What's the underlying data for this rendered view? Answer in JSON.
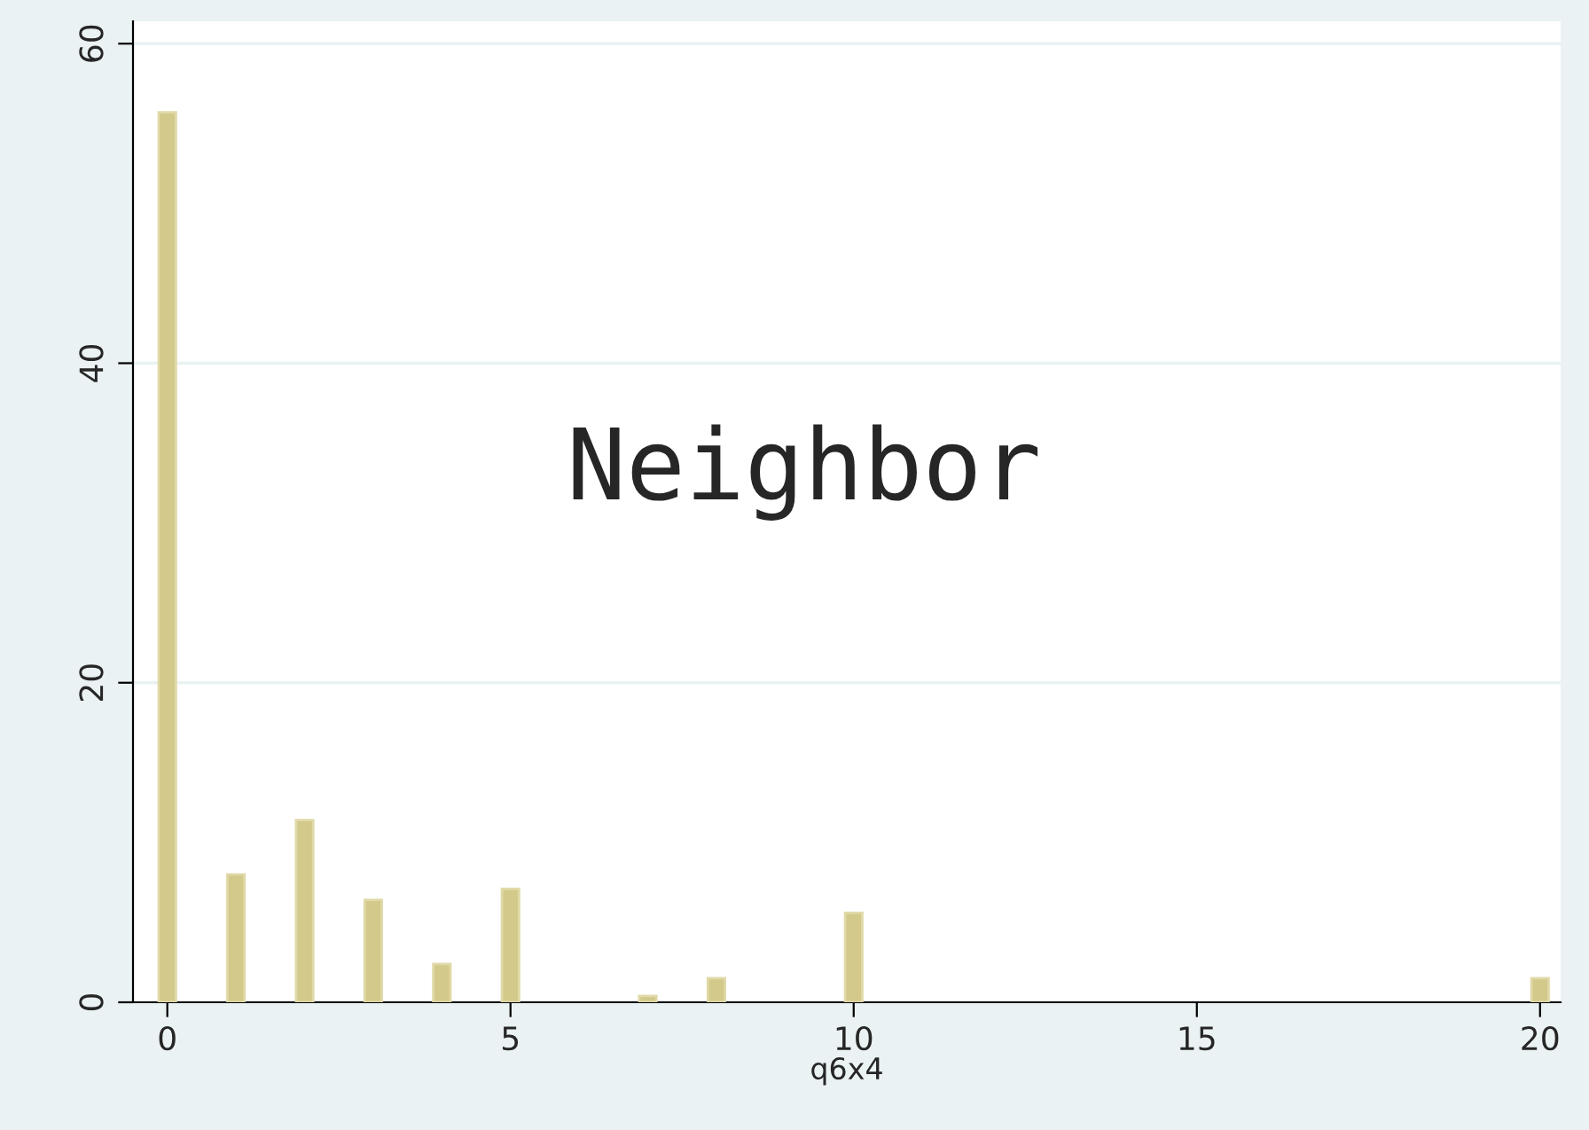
{
  "chart_data": {
    "type": "bar",
    "xlabel": "q6x4",
    "x": [
      0,
      1,
      2,
      3,
      4,
      5,
      7,
      8,
      10,
      20
    ],
    "values": [
      55.7,
      8.0,
      11.4,
      6.4,
      2.4,
      7.1,
      0.4,
      1.5,
      5.6,
      1.5
    ],
    "color": "#d2c98a",
    "xlim": [
      -0.5,
      20.3
    ],
    "xticks": [
      0,
      5,
      10,
      15,
      20
    ],
    "ylim": [
      0,
      61.4
    ],
    "yticks": [
      0,
      20,
      40,
      60
    ],
    "grid": "y",
    "annotations": [
      "Neighbor"
    ]
  }
}
